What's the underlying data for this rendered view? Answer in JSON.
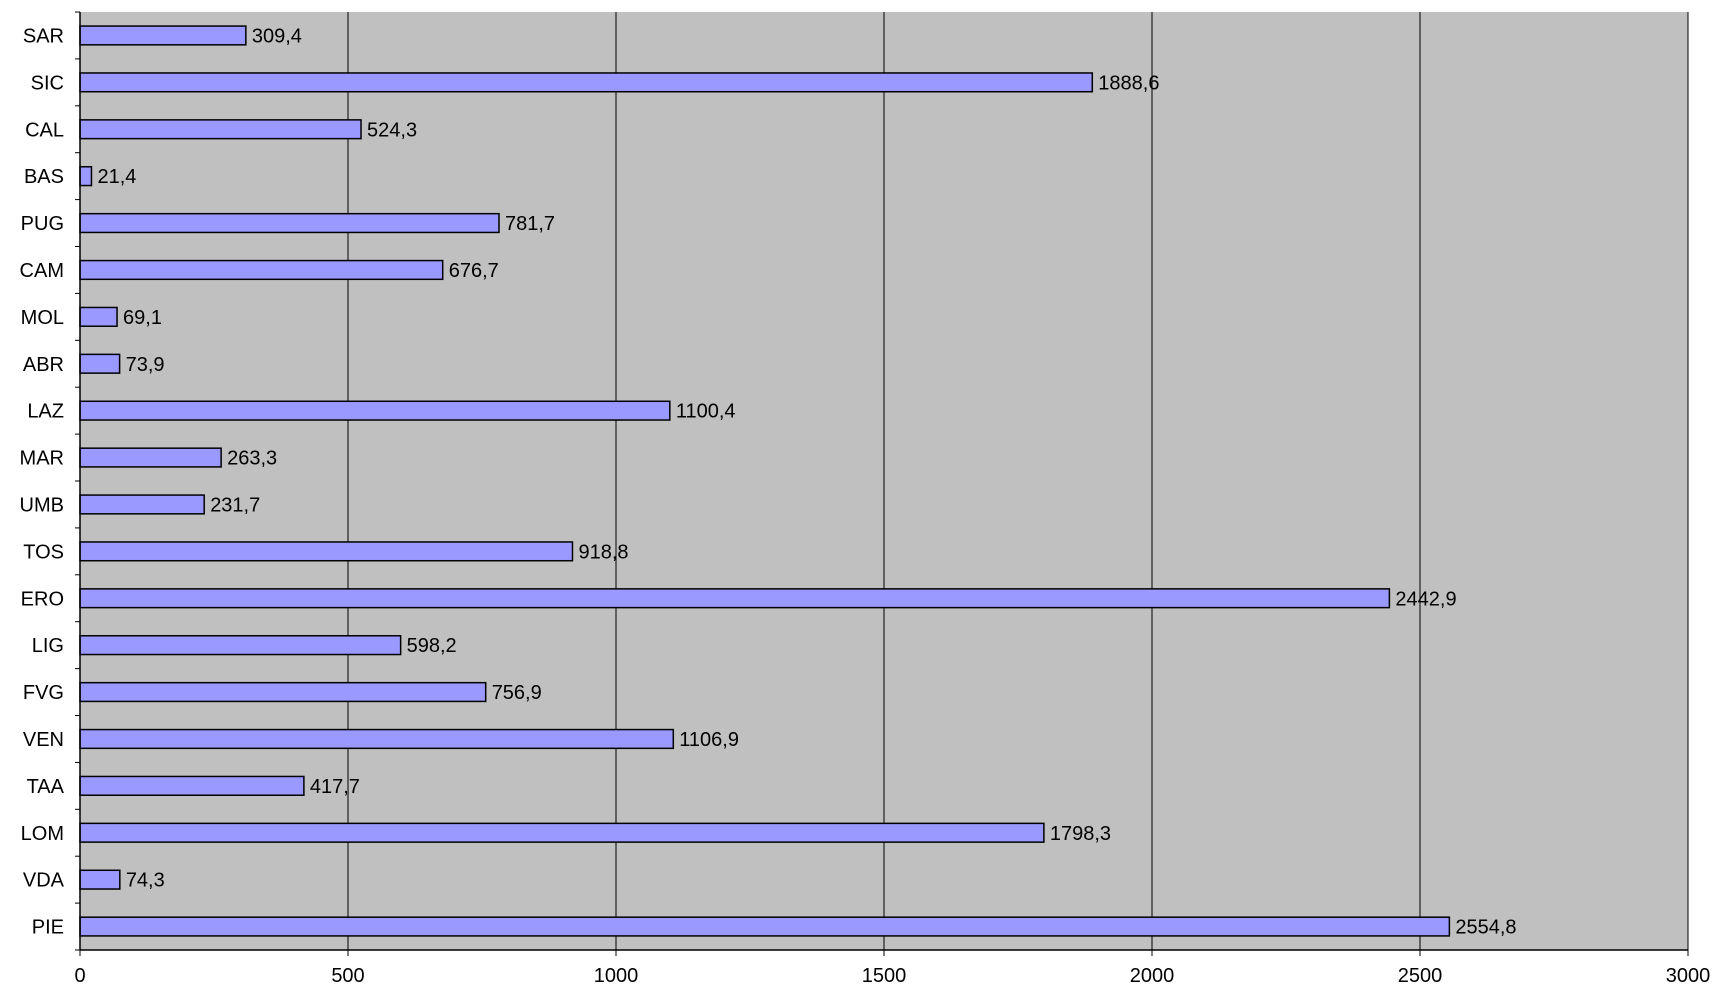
{
  "chart_data": {
    "type": "bar",
    "orientation": "horizontal",
    "title": "",
    "xlabel": "",
    "ylabel": "",
    "xlim": [
      0,
      3000
    ],
    "x_ticks": [
      0,
      500,
      1000,
      1500,
      2000,
      2500,
      3000
    ],
    "grid": "vertical",
    "categories": [
      "SAR",
      "SIC",
      "CAL",
      "BAS",
      "PUG",
      "CAM",
      "MOL",
      "ABR",
      "LAZ",
      "MAR",
      "UMB",
      "TOS",
      "ERO",
      "LIG",
      "FVG",
      "VEN",
      "TAA",
      "LOM",
      "VDA",
      "PIE"
    ],
    "values": [
      309.4,
      1888.6,
      524.3,
      21.4,
      781.7,
      676.7,
      69.1,
      73.9,
      1100.4,
      263.3,
      231.7,
      918.8,
      2442.9,
      598.2,
      756.9,
      1106.9,
      417.7,
      1798.3,
      74.3,
      2554.8
    ],
    "data_labels": [
      "309,4",
      "1888,6",
      "524,3",
      "21,4",
      "781,7",
      "676,7",
      "69,1",
      "73,9",
      "1100,4",
      "263,3",
      "231,7",
      "918,8",
      "2442,9",
      "598,2",
      "756,9",
      "1106,9",
      "417,7",
      "1798,3",
      "74,3",
      "2554,8"
    ],
    "colors": {
      "bar_fill": "#9999ff",
      "bar_stroke": "#000000",
      "plot_background": "#c0c0c0",
      "grid": "#000000"
    }
  }
}
